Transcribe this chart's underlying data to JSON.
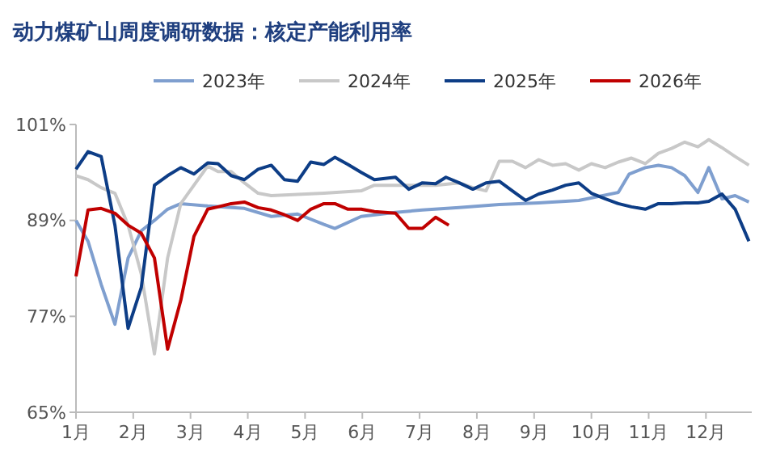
{
  "chart_data": {
    "type": "line",
    "title": "动力煤矿山周度调研数据：核定产能利用率",
    "legend": "top",
    "grid": false,
    "marker": "none",
    "line_style": "solid",
    "xlim": [
      1,
      12.8
    ],
    "xticks": [
      {
        "value": 1,
        "label": "1月"
      },
      {
        "value": 2,
        "label": "2月"
      },
      {
        "value": 3,
        "label": "3月"
      },
      {
        "value": 4,
        "label": "4月"
      },
      {
        "value": 5,
        "label": "5月"
      },
      {
        "value": 6,
        "label": "6月"
      },
      {
        "value": 7,
        "label": "7月"
      },
      {
        "value": 8,
        "label": "8月"
      },
      {
        "value": 9,
        "label": "9月"
      },
      {
        "value": 10,
        "label": "10月"
      },
      {
        "value": 11,
        "label": "11月"
      },
      {
        "value": 12,
        "label": "12月"
      }
    ],
    "ylim": [
      65,
      101
    ],
    "yticks": [
      {
        "value": 65,
        "label": "65%"
      },
      {
        "value": 77,
        "label": "77%"
      },
      {
        "value": 89,
        "label": "89%"
      },
      {
        "value": 101,
        "label": "101%"
      }
    ],
    "series": [
      {
        "name": "2023年",
        "color": "#7f9fcf",
        "x": [
          1,
          1.21,
          1.44,
          1.68,
          1.91,
          2.14,
          2.37,
          2.6,
          2.83,
          3.3,
          3.94,
          4.41,
          4.87,
          5.33,
          5.52,
          5.98,
          6.58,
          7.05,
          7.69,
          8.39,
          9.08,
          9.78,
          10.47,
          10.66,
          10.94,
          11.17,
          11.4,
          11.63,
          11.86,
          12.05,
          12.28,
          12.51,
          12.75
        ],
        "values": [
          89,
          86.4,
          81,
          76,
          84.3,
          87.7,
          89,
          90.4,
          91.1,
          90.8,
          90.5,
          89.5,
          89.8,
          88.5,
          88,
          89.5,
          90,
          90.3,
          90.6,
          91,
          91.2,
          91.5,
          92.5,
          94.8,
          95.6,
          95.9,
          95.6,
          94.6,
          92.5,
          95.6,
          91.7,
          92.1,
          91.3
        ]
      },
      {
        "name": "2024年",
        "color": "#c8c8c8",
        "x": [
          1,
          1.21,
          1.44,
          1.68,
          1.91,
          2.14,
          2.37,
          2.6,
          2.83,
          3.06,
          3.3,
          3.48,
          3.71,
          3.94,
          4.18,
          4.41,
          5.33,
          5.98,
          6.21,
          7.28,
          7.69,
          7.93,
          8.16,
          8.39,
          8.62,
          8.85,
          9.08,
          9.32,
          9.55,
          9.78,
          10,
          10.24,
          10.47,
          10.7,
          10.94,
          11.17,
          11.4,
          11.63,
          11.86,
          12.05,
          12.28,
          12.51,
          12.75
        ],
        "values": [
          94.6,
          94.1,
          93.1,
          92.4,
          88.4,
          82.3,
          72.3,
          84.3,
          91.1,
          93.4,
          95.8,
          95.1,
          95.1,
          93.7,
          92.4,
          92.1,
          92.4,
          92.7,
          93.4,
          93.4,
          93.7,
          93.1,
          92.7,
          96.4,
          96.4,
          95.6,
          96.6,
          95.9,
          96.1,
          95.3,
          96.1,
          95.6,
          96.3,
          96.8,
          96.1,
          97.4,
          98,
          98.8,
          98.2,
          99.1,
          98.1,
          97,
          95.9
        ]
      },
      {
        "name": "2025年",
        "color": "#0d3d86",
        "x": [
          1,
          1.21,
          1.44,
          1.68,
          1.91,
          2.14,
          2.37,
          2.6,
          2.83,
          3.06,
          3.3,
          3.48,
          3.71,
          3.94,
          4.18,
          4.41,
          4.64,
          4.87,
          5.1,
          5.33,
          5.52,
          5.75,
          5.98,
          6.21,
          6.58,
          6.81,
          7.05,
          7.28,
          7.46,
          7.69,
          7.93,
          8.16,
          8.39,
          8.62,
          8.85,
          9.08,
          9.32,
          9.55,
          9.78,
          10,
          10.24,
          10.47,
          10.7,
          10.94,
          11.17,
          11.4,
          11.63,
          11.86,
          12.05,
          12.28,
          12.51,
          12.75
        ],
        "values": [
          95.4,
          97.6,
          97,
          88.4,
          75.5,
          80.6,
          93.4,
          94.6,
          95.6,
          94.8,
          96.2,
          96.1,
          94.6,
          94.1,
          95.4,
          95.9,
          94.1,
          93.9,
          96.3,
          96,
          96.9,
          96,
          95,
          94.1,
          94.4,
          92.9,
          93.7,
          93.6,
          94.4,
          93.7,
          92.9,
          93.7,
          93.9,
          92.7,
          91.5,
          92.3,
          92.8,
          93.4,
          93.7,
          92.4,
          91.7,
          91.1,
          90.7,
          90.4,
          91.1,
          91.1,
          91.2,
          91.2,
          91.4,
          92.3,
          90.4,
          86.4
        ]
      },
      {
        "name": "2026年",
        "color": "#c00000",
        "x": [
          1,
          1.21,
          1.44,
          1.68,
          1.91,
          2.14,
          2.37,
          2.6,
          2.83,
          3.06,
          3.3,
          3.48,
          3.71,
          3.94,
          4.18,
          4.41,
          4.64,
          4.87,
          5.1,
          5.33,
          5.52,
          5.75,
          5.98,
          6.21,
          6.58,
          6.81,
          7.05,
          7.28,
          7.51
        ],
        "values": [
          82,
          90.3,
          90.5,
          89.9,
          88.4,
          87.4,
          84.3,
          72.9,
          79,
          87,
          90.4,
          90.7,
          91.1,
          91.3,
          90.6,
          90.3,
          89.7,
          89,
          90.4,
          91.1,
          91.1,
          90.4,
          90.4,
          90.1,
          89.9,
          88,
          88,
          89.4,
          88.4
        ]
      }
    ]
  }
}
